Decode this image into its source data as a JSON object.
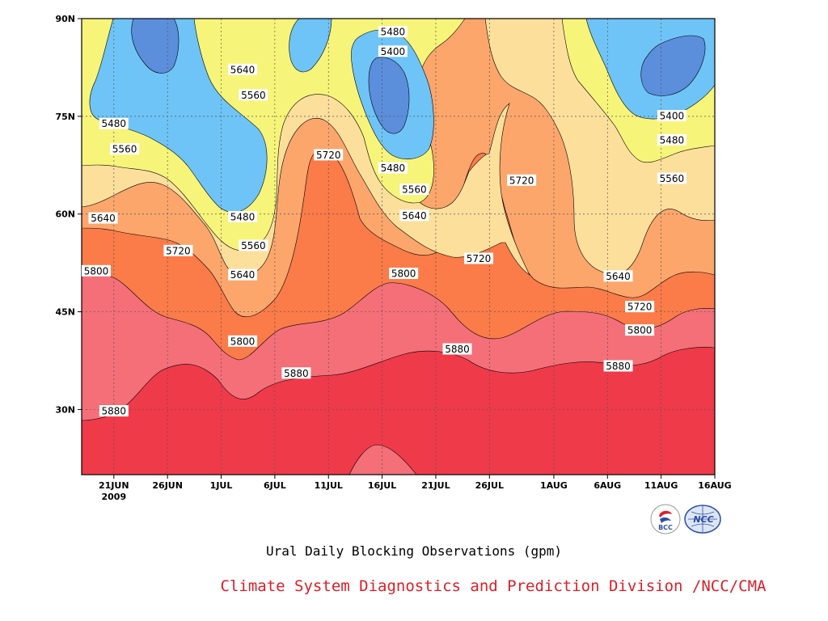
{
  "title": "Ural Daily Blocking Observations (gpm)",
  "credit": "Climate System Diagnostics and Prediction Division /NCC/CMA",
  "logos": {
    "bcc_text": "BCC",
    "ncc_text": "NCC"
  },
  "chart_data": {
    "type": "contour",
    "x_axis": {
      "range": [
        "2009-06-18",
        "2009-08-16"
      ],
      "ticks": [
        {
          "date": "2009-06-21",
          "label": "21JUN"
        },
        {
          "date": "2009-06-26",
          "label": "26JUN"
        },
        {
          "date": "2009-07-01",
          "label": "1JUL"
        },
        {
          "date": "2009-07-06",
          "label": "6JUL"
        },
        {
          "date": "2009-07-11",
          "label": "11JUL"
        },
        {
          "date": "2009-07-16",
          "label": "16JUL"
        },
        {
          "date": "2009-07-21",
          "label": "21JUL"
        },
        {
          "date": "2009-07-26",
          "label": "26JUL"
        },
        {
          "date": "2009-08-01",
          "label": "1AUG"
        },
        {
          "date": "2009-08-06",
          "label": "6AUG"
        },
        {
          "date": "2009-08-11",
          "label": "11AUG"
        },
        {
          "date": "2009-08-16",
          "label": "16AUG"
        }
      ],
      "year_label": "2009"
    },
    "y_axis": {
      "range": [
        20,
        90
      ],
      "ticks": [
        {
          "value": 30,
          "label": "30N"
        },
        {
          "value": 45,
          "label": "45N"
        },
        {
          "value": 60,
          "label": "60N"
        },
        {
          "value": 75,
          "label": "75N"
        },
        {
          "value": 90,
          "label": "90N"
        }
      ]
    },
    "grid": true,
    "levels": [
      5400,
      5480,
      5560,
      5640,
      5720,
      5800,
      5880
    ],
    "fill_colors": {
      "below_5400": "#5b8edb",
      "5400_5480": "#6ec4f6",
      "5480_5560": "#f7f47a",
      "5560_5640": "#fddf9c",
      "5640_5720": "#fca66c",
      "5720_5800": "#fb7b49",
      "5800_5880": "#f46f78",
      "above_5880": "#ef3a4a"
    },
    "contour_labels": [
      {
        "text": "5480",
        "date": "2009-06-21",
        "lat": 73.9
      },
      {
        "text": "5560",
        "date": "2009-06-22",
        "lat": 70.0
      },
      {
        "text": "5640",
        "date": "2009-06-20",
        "lat": 59.4
      },
      {
        "text": "5720",
        "date": "2009-06-27",
        "lat": 54.4
      },
      {
        "text": "5800",
        "date": "2009-06-18",
        "lat": 51.3
      },
      {
        "text": "5880",
        "date": "2009-06-21",
        "lat": 29.8
      },
      {
        "text": "5640",
        "date": "2009-07-03",
        "lat": 82.2
      },
      {
        "text": "5560",
        "date": "2009-07-04",
        "lat": 78.3
      },
      {
        "text": "5480",
        "date": "2009-07-03",
        "lat": 59.6
      },
      {
        "text": "5560",
        "date": "2009-07-04",
        "lat": 55.2
      },
      {
        "text": "5640",
        "date": "2009-07-03",
        "lat": 50.7
      },
      {
        "text": "5800",
        "date": "2009-07-03",
        "lat": 40.5
      },
      {
        "text": "5880",
        "date": "2009-07-08",
        "lat": 35.6
      },
      {
        "text": "5720",
        "date": "2009-07-11",
        "lat": 69.1
      },
      {
        "text": "5480",
        "date": "2009-07-17",
        "lat": 88.0
      },
      {
        "text": "5400",
        "date": "2009-07-17",
        "lat": 85.0
      },
      {
        "text": "5480",
        "date": "2009-07-17",
        "lat": 67.1
      },
      {
        "text": "5560",
        "date": "2009-07-19",
        "lat": 63.8
      },
      {
        "text": "5640",
        "date": "2009-07-19",
        "lat": 59.8
      },
      {
        "text": "5800",
        "date": "2009-07-18",
        "lat": 50.9
      },
      {
        "text": "5720",
        "date": "2009-07-25",
        "lat": 53.2
      },
      {
        "text": "5880",
        "date": "2009-07-23",
        "lat": 39.3
      },
      {
        "text": "5720",
        "date": "2009-07-29",
        "lat": 65.2
      },
      {
        "text": "5640",
        "date": "2009-08-07",
        "lat": 50.5
      },
      {
        "text": "5720",
        "date": "2009-08-09",
        "lat": 45.8
      },
      {
        "text": "5800",
        "date": "2009-08-09",
        "lat": 42.2
      },
      {
        "text": "5880",
        "date": "2009-08-07",
        "lat": 36.7
      },
      {
        "text": "5400",
        "date": "2009-08-12",
        "lat": 75.1
      },
      {
        "text": "5480",
        "date": "2009-08-12",
        "lat": 71.4
      },
      {
        "text": "5560",
        "date": "2009-08-12",
        "lat": 65.5
      }
    ]
  }
}
